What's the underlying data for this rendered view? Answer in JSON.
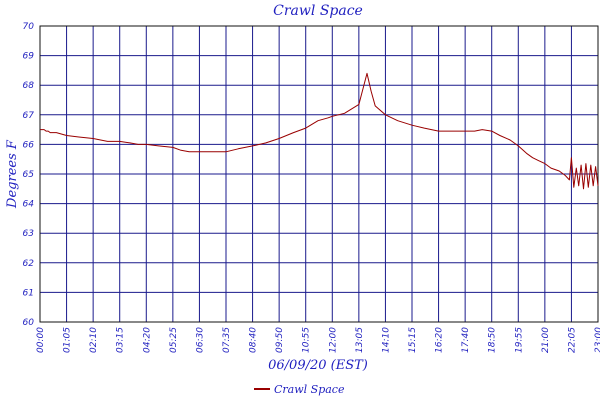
{
  "chart_data": {
    "type": "line",
    "title": "Crawl Space",
    "xlabel": "06/09/20 (EST)",
    "ylabel": "Degrees F",
    "y_tick_labels": [
      "60",
      "61",
      "62",
      "63",
      "64",
      "65",
      "66",
      "67",
      "68",
      "69",
      "70"
    ],
    "x_tick_labels": [
      "00:00",
      "01:05",
      "02:10",
      "03:15",
      "04:20",
      "05:25",
      "06:30",
      "07:35",
      "08:40",
      "09:50",
      "10:55",
      "12:00",
      "13:05",
      "14:10",
      "15:15",
      "16:20",
      "17:40",
      "18:50",
      "19:55",
      "21:00",
      "22:05",
      "23:00"
    ],
    "ylim": [
      60,
      70
    ],
    "grid": true,
    "legend_placement": "bottom-center",
    "series": [
      {
        "name": "Crawl Space",
        "color": "#990000",
        "x": [
          "00:00",
          "00:10",
          "00:15",
          "00:20",
          "00:25",
          "00:40",
          "01:05",
          "01:35",
          "02:10",
          "02:45",
          "03:15",
          "03:40",
          "04:00",
          "04:20",
          "04:50",
          "05:25",
          "05:45",
          "06:05",
          "06:30",
          "07:00",
          "07:35",
          "07:50",
          "08:05",
          "08:40",
          "09:15",
          "09:50",
          "10:25",
          "10:55",
          "11:25",
          "11:50",
          "12:00",
          "12:30",
          "13:05",
          "13:25",
          "13:35",
          "13:45",
          "14:10",
          "14:40",
          "15:15",
          "15:45",
          "16:20",
          "16:45",
          "17:10",
          "17:40",
          "18:05",
          "18:25",
          "18:50",
          "19:10",
          "19:35",
          "19:55",
          "20:15",
          "20:30",
          "20:45",
          "21:00",
          "21:15",
          "21:35",
          "21:50",
          "22:00",
          "22:05",
          "22:10",
          "22:15",
          "22:20",
          "22:25",
          "22:30",
          "22:35",
          "22:40",
          "22:45",
          "22:50",
          "22:55",
          "23:00"
        ],
        "values": [
          66.5,
          66.5,
          66.45,
          66.45,
          66.4,
          66.4,
          66.3,
          66.25,
          66.2,
          66.1,
          66.1,
          66.05,
          66.0,
          66.0,
          65.95,
          65.9,
          65.8,
          65.75,
          65.75,
          65.75,
          65.75,
          65.8,
          65.85,
          65.95,
          66.05,
          66.2,
          66.4,
          66.55,
          66.8,
          66.9,
          66.95,
          67.05,
          67.35,
          68.4,
          67.8,
          67.3,
          67.0,
          66.8,
          66.65,
          66.55,
          66.45,
          66.45,
          66.45,
          66.45,
          66.45,
          66.5,
          66.45,
          66.3,
          66.15,
          65.95,
          65.7,
          65.55,
          65.45,
          65.35,
          65.2,
          65.1,
          64.95,
          64.8,
          65.55,
          64.55,
          65.2,
          64.6,
          65.3,
          64.5,
          65.35,
          64.55,
          65.3,
          64.6,
          65.25,
          64.6
        ]
      }
    ]
  }
}
